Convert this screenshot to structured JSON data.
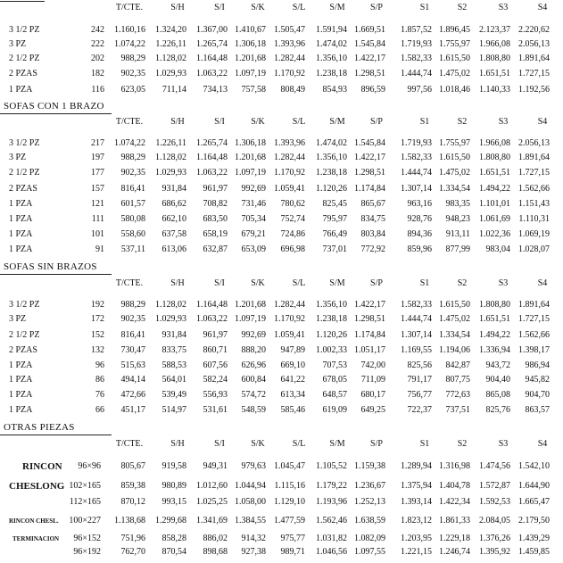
{
  "sections": [
    {
      "headers": [
        "T/CTE.",
        "S/H",
        "S/I",
        "S/K",
        "S/L",
        "S/M",
        "S/P",
        "S1",
        "S2",
        "S3",
        "S4"
      ],
      "rows": [
        {
          "label": "3 1/2 PZ",
          "size": "242",
          "values": [
            "1.160,16",
            "1.324,20",
            "1.367,00",
            "1.410,67",
            "1.505,47",
            "1.591,94",
            "1.669,51",
            "1.857,52",
            "1.896,45",
            "2.123,37",
            "2.220,62"
          ]
        },
        {
          "label": "3 PZ",
          "size": "222",
          "values": [
            "1.074,22",
            "1.226,11",
            "1.265,74",
            "1.306,18",
            "1.393,96",
            "1.474,02",
            "1.545,84",
            "1.719,93",
            "1.755,97",
            "1.966,08",
            "2.056,13"
          ]
        },
        {
          "label": "2 1/2 PZ",
          "size": "202",
          "values": [
            "988,29",
            "1.128,02",
            "1.164,48",
            "1.201,68",
            "1.282,44",
            "1.356,10",
            "1.422,17",
            "1.582,33",
            "1.615,50",
            "1.808,80",
            "1.891,64"
          ]
        },
        {
          "label": "2 PZAS",
          "size": "182",
          "values": [
            "902,35",
            "1.029,93",
            "1.063,22",
            "1.097,19",
            "1.170,92",
            "1.238,18",
            "1.298,51",
            "1.444,74",
            "1.475,02",
            "1.651,51",
            "1.727,15"
          ]
        },
        {
          "label": "1 PZA",
          "size": "116",
          "values": [
            "623,05",
            "711,14",
            "734,13",
            "757,58",
            "808,49",
            "854,93",
            "896,59",
            "997,56",
            "1.018,46",
            "1.140,33",
            "1.192,56"
          ]
        }
      ]
    },
    {
      "title": "SOFAS CON 1 BRAZO",
      "headers": [
        "T/CTE.",
        "S/H",
        "S/I",
        "S/K",
        "S/L",
        "S/M",
        "S/P",
        "S1",
        "S2",
        "S3",
        "S4"
      ],
      "rows": [
        {
          "label": "3 1/2 PZ",
          "size": "217",
          "values": [
            "1.074,22",
            "1.226,11",
            "1.265,74",
            "1.306,18",
            "1.393,96",
            "1.474,02",
            "1.545,84",
            "1.719,93",
            "1.755,97",
            "1.966,08",
            "2.056,13"
          ]
        },
        {
          "label": "3 PZ",
          "size": "197",
          "values": [
            "988,29",
            "1.128,02",
            "1.164,48",
            "1.201,68",
            "1.282,44",
            "1.356,10",
            "1.422,17",
            "1.582,33",
            "1.615,50",
            "1.808,80",
            "1.891,64"
          ]
        },
        {
          "label": "2 1/2 PZ",
          "size": "177",
          "values": [
            "902,35",
            "1.029,93",
            "1.063,22",
            "1.097,19",
            "1.170,92",
            "1.238,18",
            "1.298,51",
            "1.444,74",
            "1.475,02",
            "1.651,51",
            "1.727,15"
          ]
        },
        {
          "label": "2 PZAS",
          "size": "157",
          "values": [
            "816,41",
            "931,84",
            "961,97",
            "992,69",
            "1.059,41",
            "1.120,26",
            "1.174,84",
            "1.307,14",
            "1.334,54",
            "1.494,22",
            "1.562,66"
          ]
        },
        {
          "label": "1 PZA",
          "size": "121",
          "values": [
            "601,57",
            "686,62",
            "708,82",
            "731,46",
            "780,62",
            "825,45",
            "865,67",
            "963,16",
            "983,35",
            "1.101,01",
            "1.151,43"
          ]
        },
        {
          "label": "1 PZA",
          "size": "111",
          "values": [
            "580,08",
            "662,10",
            "683,50",
            "705,34",
            "752,74",
            "795,97",
            "834,75",
            "928,76",
            "948,23",
            "1.061,69",
            "1.110,31"
          ]
        },
        {
          "label": "1 PZA",
          "size": "101",
          "values": [
            "558,60",
            "637,58",
            "658,19",
            "679,21",
            "724,86",
            "766,49",
            "803,84",
            "894,36",
            "913,11",
            "1.022,36",
            "1.069,19"
          ]
        },
        {
          "label": "1 PZA",
          "size": "91",
          "values": [
            "537,11",
            "613,06",
            "632,87",
            "653,09",
            "696,98",
            "737,01",
            "772,92",
            "859,96",
            "877,99",
            "983,04",
            "1.028,07"
          ]
        }
      ]
    },
    {
      "title": "SOFAS SIN BRAZOS",
      "headers": [
        "T/CTE.",
        "S/H",
        "S/I",
        "S/K",
        "S/L",
        "S/M",
        "S/P",
        "S1",
        "S2",
        "S3",
        "S4"
      ],
      "rows": [
        {
          "label": "3 1/2 PZ",
          "size": "192",
          "values": [
            "988,29",
            "1.128,02",
            "1.164,48",
            "1.201,68",
            "1.282,44",
            "1.356,10",
            "1.422,17",
            "1.582,33",
            "1.615,50",
            "1.808,80",
            "1.891,64"
          ]
        },
        {
          "label": "3 PZ",
          "size": "172",
          "values": [
            "902,35",
            "1.029,93",
            "1.063,22",
            "1.097,19",
            "1.170,92",
            "1.238,18",
            "1.298,51",
            "1.444,74",
            "1.475,02",
            "1.651,51",
            "1.727,15"
          ]
        },
        {
          "label": "2 1/2 PZ",
          "size": "152",
          "values": [
            "816,41",
            "931,84",
            "961,97",
            "992,69",
            "1.059,41",
            "1.120,26",
            "1.174,84",
            "1.307,14",
            "1.334,54",
            "1.494,22",
            "1.562,66"
          ]
        },
        {
          "label": "2 PZAS",
          "size": "132",
          "values": [
            "730,47",
            "833,75",
            "860,71",
            "888,20",
            "947,89",
            "1.002,33",
            "1.051,17",
            "1.169,55",
            "1.194,06",
            "1.336,94",
            "1.398,17"
          ]
        },
        {
          "label": "1 PZA",
          "size": "96",
          "values": [
            "515,63",
            "588,53",
            "607,56",
            "626,96",
            "669,10",
            "707,53",
            "742,00",
            "825,56",
            "842,87",
            "943,72",
            "986,94"
          ]
        },
        {
          "label": "1 PZA",
          "size": "86",
          "values": [
            "494,14",
            "564,01",
            "582,24",
            "600,84",
            "641,22",
            "678,05",
            "711,09",
            "791,17",
            "807,75",
            "904,40",
            "945,82"
          ]
        },
        {
          "label": "1 PZA",
          "size": "76",
          "values": [
            "472,66",
            "539,49",
            "556,93",
            "574,72",
            "613,34",
            "648,57",
            "680,17",
            "756,77",
            "772,63",
            "865,08",
            "904,70"
          ]
        },
        {
          "label": "1 PZA",
          "size": "66",
          "values": [
            "451,17",
            "514,97",
            "531,61",
            "548,59",
            "585,46",
            "619,09",
            "649,25",
            "722,37",
            "737,51",
            "825,76",
            "863,57"
          ]
        }
      ]
    },
    {
      "title": "OTRAS PIEZAS",
      "headers": [
        "T/CTE.",
        "S/H",
        "S/I",
        "S/K",
        "S/L",
        "S/M",
        "S/P",
        "S1",
        "S2",
        "S3",
        "S4"
      ],
      "rows": [
        {
          "label": "RINCON",
          "size": "96×96",
          "values": [
            "805,67",
            "919,58",
            "949,31",
            "979,63",
            "1.045,47",
            "1.105,52",
            "1.159,38",
            "1.289,94",
            "1.316,98",
            "1.474,56",
            "1.542,10"
          ]
        },
        {
          "label": "CHESLONG",
          "size": "102×165",
          "values": [
            "859,38",
            "980,89",
            "1.012,60",
            "1.044,94",
            "1.115,16",
            "1.179,22",
            "1.236,67",
            "1.375,94",
            "1.404,78",
            "1.572,87",
            "1.644,90"
          ]
        },
        {
          "size": "112×165",
          "values": [
            "870,12",
            "993,15",
            "1.025,25",
            "1.058,00",
            "1.129,10",
            "1.193,96",
            "1.252,13",
            "1.393,14",
            "1.422,34",
            "1.592,53",
            "1.665,47"
          ]
        },
        {
          "label": "RINCON CHESL.",
          "size": "100×227",
          "values": [
            "1.138,68",
            "1.299,68",
            "1.341,69",
            "1.384,55",
            "1.477,59",
            "1.562,46",
            "1.638,59",
            "1.823,12",
            "1.861,33",
            "2.084,05",
            "2.179,50"
          ]
        },
        {
          "label": "TERMINACION",
          "size": "96×152",
          "values": [
            "751,96",
            "858,28",
            "886,02",
            "914,32",
            "975,77",
            "1.031,82",
            "1.082,09",
            "1.203,95",
            "1.229,18",
            "1.376,26",
            "1.439,29"
          ]
        },
        {
          "size": "96×192",
          "values": [
            "762,70",
            "870,54",
            "898,68",
            "927,38",
            "989,71",
            "1.046,56",
            "1.097,55",
            "1.221,15",
            "1.246,74",
            "1.395,92",
            "1.459,85"
          ]
        }
      ]
    }
  ]
}
